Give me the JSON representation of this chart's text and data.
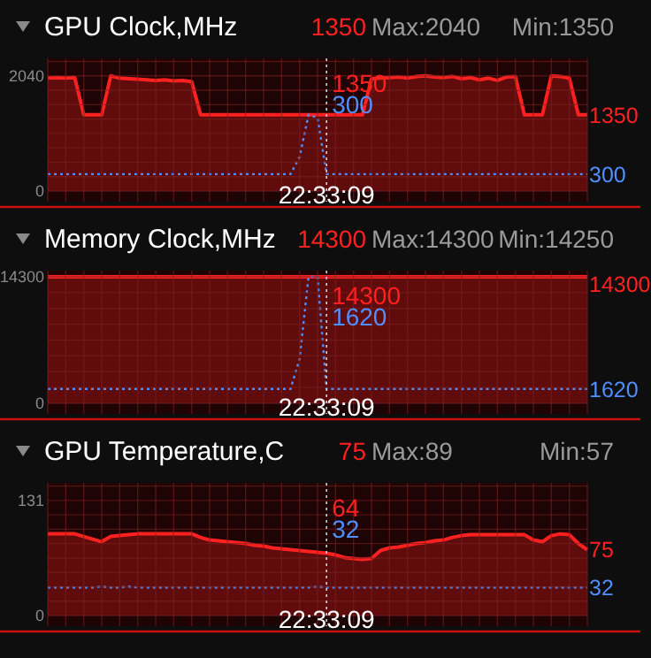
{
  "chart_data": [
    {
      "type": "area",
      "title": "GPU Clock,MHz",
      "annotations": [
        "1350",
        "Max:2040",
        "Min:1350",
        "1350",
        "300"
      ],
      "categories": [
        null,
        null,
        null,
        null,
        null,
        null,
        null,
        null,
        null,
        null,
        null,
        null,
        null,
        null,
        null,
        null,
        null,
        null,
        null,
        null,
        null,
        null,
        null,
        null,
        null,
        null,
        null,
        null,
        null,
        null,
        null,
        "22:33:09",
        null,
        null,
        null,
        null,
        null,
        null,
        null,
        null,
        null,
        null,
        null,
        null,
        null,
        null,
        null,
        null,
        null,
        null,
        null,
        null,
        null,
        null,
        null,
        null,
        null,
        null,
        null,
        null,
        null
      ],
      "ylim": [
        0,
        2350
      ],
      "yticks": [
        0,
        {
          "value": 255,
          "label": null
        },
        {
          "value": 510,
          "label": null
        },
        {
          "value": 765,
          "label": null
        },
        {
          "value": 1020,
          "label": null
        },
        {
          "value": 1275,
          "label": null
        },
        {
          "value": 1530,
          "label": null
        },
        {
          "value": 1785,
          "label": null
        },
        2040,
        {
          "value": 2295,
          "label": null
        }
      ],
      "grid": true,
      "ref_lines": [
        {
          "axis": "x",
          "value": "22:33:09",
          "line_style": "dotted"
        }
      ],
      "series": [
        {
          "type": "area",
          "color": "#ff2020",
          "values": [
            2000,
            2010,
            2000,
            2010,
            1350,
            1350,
            1350,
            2040,
            2000,
            1990,
            1980,
            1970,
            1960,
            1970,
            1950,
            1960,
            1940,
            1350,
            1350,
            1350,
            1350,
            1350,
            1350,
            1350,
            1350,
            1350,
            1350,
            1350,
            1350,
            1350,
            1350,
            1350,
            1350,
            1350,
            1350,
            1350,
            1990,
            2000,
            2010,
            2020,
            2000,
            2030,
            2040,
            2020,
            2010,
            2030,
            1990,
            2010,
            1970,
            2000,
            1960,
            2020,
            2030,
            1350,
            1350,
            1350,
            2040,
            2030,
            2000,
            1350,
            1350
          ],
          "value_labels": [
            null,
            null,
            null,
            null,
            null,
            null,
            null,
            null,
            null,
            null,
            null,
            null,
            null,
            null,
            null,
            null,
            null,
            null,
            null,
            null,
            null,
            null,
            null,
            null,
            null,
            null,
            null,
            null,
            null,
            null,
            null,
            null,
            null,
            null,
            null,
            null,
            null,
            null,
            null,
            null,
            null,
            null,
            null,
            null,
            null,
            null,
            null,
            null,
            null,
            null,
            null,
            null,
            null,
            null,
            null,
            null,
            null,
            null,
            null,
            null,
            "1350"
          ]
        },
        {
          "type": "line",
          "color": "#4f8fff",
          "line_style": "dotted",
          "values": [
            300,
            300,
            300,
            300,
            300,
            300,
            300,
            300,
            300,
            300,
            300,
            300,
            300,
            300,
            300,
            300,
            300,
            300,
            300,
            300,
            300,
            300,
            300,
            300,
            300,
            300,
            300,
            300,
            600,
            1350,
            1300,
            300,
            300,
            300,
            300,
            300,
            300,
            300,
            300,
            300,
            300,
            300,
            300,
            300,
            300,
            300,
            300,
            300,
            300,
            300,
            300,
            300,
            300,
            300,
            300,
            300,
            300,
            300,
            300,
            300,
            300
          ],
          "value_labels": [
            null,
            null,
            null,
            null,
            null,
            null,
            null,
            null,
            null,
            null,
            null,
            null,
            null,
            null,
            null,
            null,
            null,
            null,
            null,
            null,
            null,
            null,
            null,
            null,
            null,
            null,
            null,
            null,
            null,
            null,
            null,
            null,
            null,
            null,
            null,
            null,
            null,
            null,
            null,
            null,
            null,
            null,
            null,
            null,
            null,
            null,
            null,
            null,
            null,
            null,
            null,
            null,
            null,
            null,
            null,
            null,
            null,
            null,
            null,
            null,
            "300"
          ]
        }
      ]
    },
    {
      "type": "area",
      "title": "Memory Clock,MHz",
      "annotations": [
        "14300",
        "Max:14300",
        "Min:14250",
        "14300",
        "1620"
      ],
      "categories": [
        null,
        null,
        null,
        null,
        null,
        null,
        null,
        null,
        null,
        null,
        null,
        null,
        null,
        null,
        null,
        null,
        null,
        null,
        null,
        null,
        null,
        null,
        null,
        null,
        null,
        null,
        null,
        null,
        null,
        null,
        null,
        "22:33:09",
        null,
        null,
        null,
        null,
        null,
        null,
        null,
        null,
        null,
        null,
        null,
        null,
        null,
        null,
        null,
        null,
        null,
        null,
        null,
        null,
        null,
        null,
        null,
        null,
        null,
        null,
        null,
        null,
        null
      ],
      "ylim": [
        0,
        15000
      ],
      "yticks": [
        0,
        {
          "value": 1787.5,
          "label": null
        },
        {
          "value": 3575,
          "label": null
        },
        {
          "value": 5362.5,
          "label": null
        },
        {
          "value": 7150,
          "label": null
        },
        {
          "value": 8937.5,
          "label": null
        },
        {
          "value": 10725,
          "label": null
        },
        {
          "value": 12512.5,
          "label": null
        },
        14300
      ],
      "grid": true,
      "ref_lines": [
        {
          "axis": "x",
          "value": "22:33:09",
          "line_style": "dotted"
        }
      ],
      "series": [
        {
          "type": "area",
          "color": "#ff2020",
          "values": [
            14300,
            14300,
            14300,
            14300,
            14300,
            14300,
            14300,
            14300,
            14300,
            14300,
            14300,
            14300,
            14300,
            14300,
            14300,
            14300,
            14300,
            14300,
            14300,
            14300,
            14300,
            14300,
            14300,
            14300,
            14300,
            14300,
            14300,
            14300,
            14300,
            14300,
            14300,
            14300,
            14300,
            14300,
            14300,
            14300,
            14300,
            14300,
            14300,
            14300,
            14300,
            14300,
            14300,
            14300,
            14300,
            14300,
            14300,
            14300,
            14300,
            14300,
            14300,
            14300,
            14300,
            14300,
            14300,
            14300,
            14300,
            14300,
            14300,
            14300,
            14300
          ],
          "value_labels": [
            null,
            null,
            null,
            null,
            null,
            null,
            null,
            null,
            null,
            null,
            null,
            null,
            null,
            null,
            null,
            null,
            null,
            null,
            null,
            null,
            null,
            null,
            null,
            null,
            null,
            null,
            null,
            null,
            null,
            null,
            null,
            null,
            null,
            null,
            null,
            null,
            null,
            null,
            null,
            null,
            null,
            null,
            null,
            null,
            null,
            null,
            null,
            null,
            null,
            null,
            null,
            null,
            null,
            null,
            null,
            null,
            null,
            null,
            null,
            null,
            "14300"
          ]
        },
        {
          "type": "line",
          "color": "#4f8fff",
          "line_style": "dotted",
          "values": [
            1620,
            1620,
            1620,
            1620,
            1620,
            1620,
            1620,
            1620,
            1620,
            1620,
            1620,
            1620,
            1620,
            1620,
            1620,
            1620,
            1620,
            1620,
            1620,
            1620,
            1620,
            1620,
            1620,
            1620,
            1620,
            1620,
            1620,
            1620,
            5000,
            14300,
            14300,
            1620,
            1620,
            1620,
            1620,
            1620,
            1620,
            1620,
            1620,
            1620,
            1620,
            1620,
            1620,
            1620,
            1620,
            1620,
            1620,
            1620,
            1620,
            1620,
            1620,
            1620,
            1620,
            1620,
            1620,
            1620,
            1620,
            1620,
            1620,
            1620,
            1620
          ],
          "value_labels": [
            null,
            null,
            null,
            null,
            null,
            null,
            null,
            null,
            null,
            null,
            null,
            null,
            null,
            null,
            null,
            null,
            null,
            null,
            null,
            null,
            null,
            null,
            null,
            null,
            null,
            null,
            null,
            null,
            null,
            null,
            null,
            null,
            null,
            null,
            null,
            null,
            null,
            null,
            null,
            null,
            null,
            null,
            null,
            null,
            null,
            null,
            null,
            null,
            null,
            null,
            null,
            null,
            null,
            null,
            null,
            null,
            null,
            null,
            null,
            null,
            "1620"
          ]
        }
      ]
    },
    {
      "type": "area",
      "title": "GPU Temperature,C",
      "annotations": [
        "75",
        "Max:89",
        "Min:57",
        "64",
        "32"
      ],
      "categories": [
        null,
        null,
        null,
        null,
        null,
        null,
        null,
        null,
        null,
        null,
        null,
        null,
        null,
        null,
        null,
        null,
        null,
        null,
        null,
        null,
        null,
        null,
        null,
        null,
        null,
        null,
        null,
        null,
        null,
        null,
        null,
        "22:33:09",
        null,
        null,
        null,
        null,
        null,
        null,
        null,
        null,
        null,
        null,
        null,
        null,
        null,
        null,
        null,
        null,
        null,
        null,
        null,
        null,
        null,
        null,
        null,
        null,
        null,
        null,
        null,
        null,
        null
      ],
      "ylim": [
        0,
        151
      ],
      "yticks": [
        0,
        {
          "value": 16.375,
          "label": null
        },
        {
          "value": 32.75,
          "label": null
        },
        {
          "value": 49.125,
          "label": null
        },
        {
          "value": 65.5,
          "label": null
        },
        {
          "value": 81.875,
          "label": null
        },
        {
          "value": 98.25,
          "label": null
        },
        {
          "value": 114.625,
          "label": null
        },
        131,
        {
          "value": 147.375,
          "label": null
        }
      ],
      "grid": true,
      "ref_lines": [
        {
          "axis": "x",
          "value": "22:33:09",
          "line_style": "dotted"
        }
      ],
      "series": [
        {
          "type": "area",
          "color": "#ff2020",
          "values": [
            93,
            93,
            93,
            93,
            90,
            87,
            84,
            90,
            91,
            92,
            93,
            93,
            93,
            93,
            93,
            93,
            93,
            89,
            86,
            85,
            84,
            83,
            82,
            80,
            79,
            77,
            76,
            75,
            74,
            73,
            72,
            71,
            69,
            66,
            65,
            64,
            65,
            74,
            77,
            78,
            80,
            82,
            83,
            85,
            86,
            89,
            91,
            92,
            92,
            92,
            92,
            92,
            92,
            92,
            86,
            84,
            91,
            93,
            92,
            82,
            75
          ],
          "value_labels": [
            null,
            null,
            null,
            null,
            null,
            null,
            null,
            null,
            null,
            null,
            null,
            null,
            null,
            null,
            null,
            null,
            null,
            null,
            null,
            null,
            null,
            null,
            null,
            null,
            null,
            null,
            null,
            null,
            null,
            null,
            null,
            null,
            null,
            null,
            null,
            null,
            null,
            null,
            null,
            null,
            null,
            null,
            null,
            null,
            null,
            null,
            null,
            null,
            null,
            null,
            null,
            null,
            null,
            null,
            null,
            null,
            null,
            null,
            null,
            null,
            "75"
          ]
        },
        {
          "type": "line",
          "color": "#4f8fff",
          "line_style": "dotted",
          "values": [
            32,
            32,
            32,
            32,
            32,
            32,
            33,
            32,
            32,
            33,
            32,
            32,
            32,
            32,
            32,
            32,
            32,
            32,
            32,
            32,
            32,
            32,
            32,
            32,
            32,
            32,
            32,
            32,
            32,
            32,
            33,
            32,
            32,
            32,
            32,
            32,
            32,
            32,
            32,
            32,
            32,
            32,
            32,
            32,
            32,
            32,
            32,
            32,
            32,
            32,
            32,
            32,
            32,
            32,
            32,
            32,
            32,
            32,
            32,
            32,
            32
          ],
          "value_labels": [
            null,
            null,
            null,
            null,
            null,
            null,
            null,
            null,
            null,
            null,
            null,
            null,
            null,
            null,
            null,
            null,
            null,
            null,
            null,
            null,
            null,
            null,
            null,
            null,
            null,
            null,
            null,
            null,
            null,
            null,
            null,
            null,
            null,
            null,
            null,
            null,
            null,
            null,
            null,
            null,
            null,
            null,
            null,
            null,
            null,
            null,
            null,
            null,
            null,
            null,
            null,
            null,
            null,
            null,
            null,
            null,
            null,
            null,
            null,
            null,
            "32"
          ]
        }
      ]
    }
  ]
}
